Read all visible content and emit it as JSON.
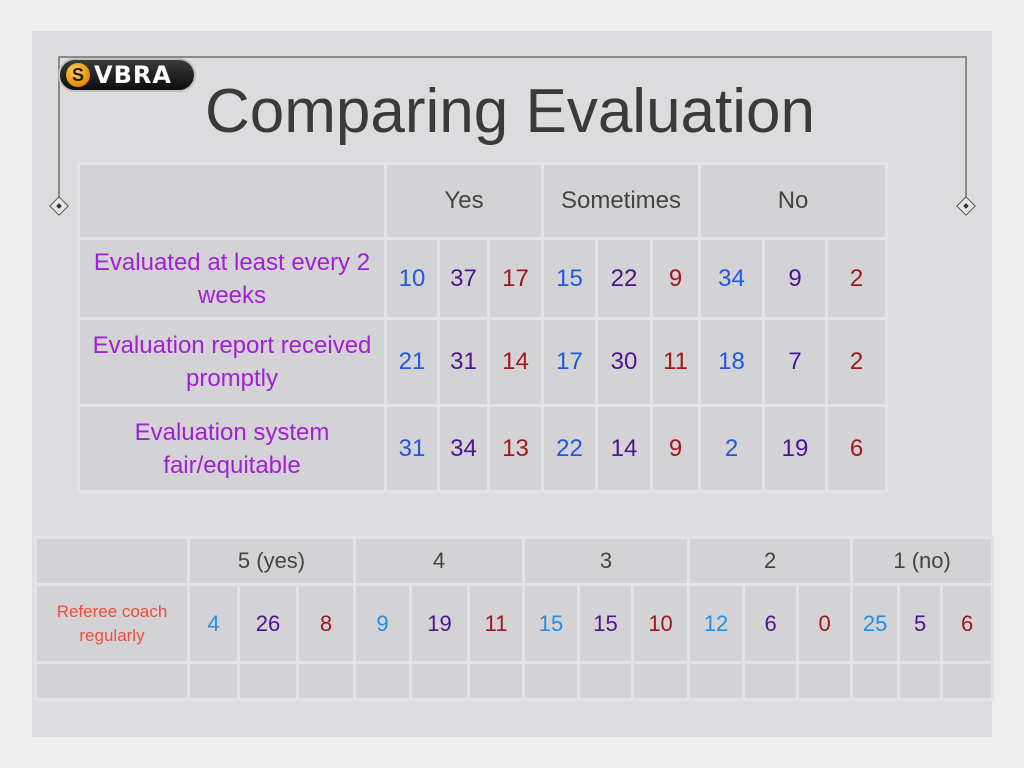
{
  "title": "Comparing Evaluation",
  "logo": {
    "text": "VBRA",
    "icon": "vbra-logo-icon"
  },
  "table1": {
    "headers": [
      "Yes",
      "Sometimes",
      "No"
    ],
    "rows": [
      {
        "label": "Evaluated at least every 2 weeks",
        "values": [
          "10",
          "37",
          "17",
          "15",
          "22",
          "9",
          "34",
          "9",
          "2"
        ]
      },
      {
        "label": "Evaluation report received promptly",
        "values": [
          "21",
          "31",
          "14",
          "17",
          "30",
          "11",
          "18",
          "7",
          "2"
        ]
      },
      {
        "label": "Evaluation system fair/equitable",
        "values": [
          "31",
          "34",
          "13",
          "22",
          "14",
          "9",
          "2",
          "19",
          "6"
        ]
      }
    ]
  },
  "table2": {
    "headers": [
      "5 (yes)",
      "4",
      "3",
      "2",
      "1 (no)"
    ],
    "rows": [
      {
        "label": "Referee coach regularly",
        "values": [
          "4",
          "26",
          "8",
          "9",
          "19",
          "11",
          "15",
          "15",
          "10",
          "12",
          "6",
          "0",
          "25",
          "5",
          "6"
        ]
      }
    ]
  },
  "colors": {
    "value_1": "#2257e0",
    "value_2": "#4c1490",
    "value_3": "#a01818",
    "label_table1": "#a21fd6",
    "label_table2": "#ef4e3a"
  }
}
